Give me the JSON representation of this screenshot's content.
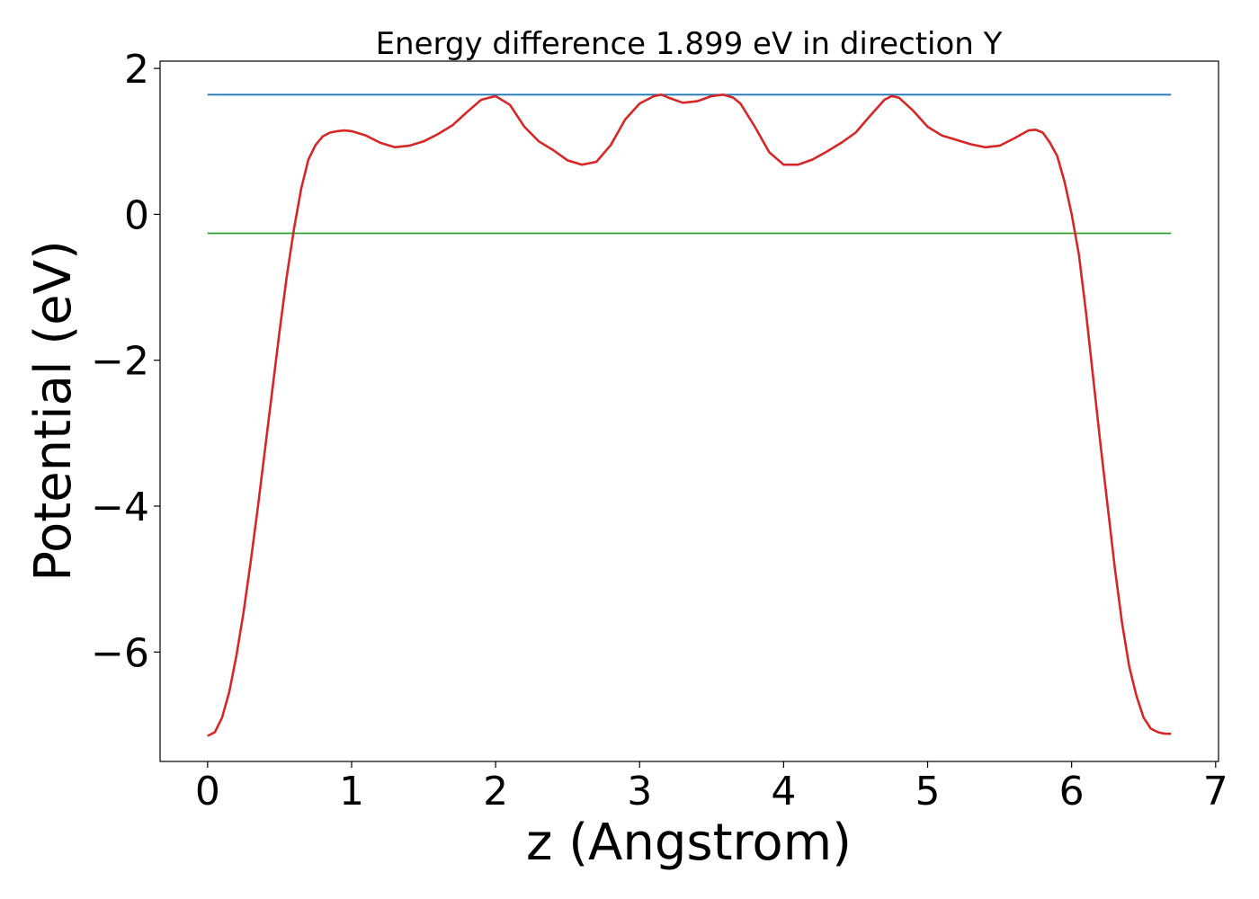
{
  "chart_data": {
    "type": "line",
    "title": "Energy difference 1.899 eV in direction Y",
    "xlabel": "z (Angstrom)",
    "ylabel": "Potential (eV)",
    "xlim": [
      -0.33,
      7.02
    ],
    "ylim": [
      -7.5,
      2.1
    ],
    "xticks": [
      0,
      1,
      2,
      3,
      4,
      5,
      6,
      7
    ],
    "xtick_labels": [
      "0",
      "1",
      "2",
      "3",
      "4",
      "5",
      "6",
      "7"
    ],
    "yticks": [
      2,
      0,
      -2,
      -4,
      -6
    ],
    "ytick_labels": [
      "2",
      "0",
      "−2",
      "−4",
      "−6"
    ],
    "grid": false,
    "series": [
      {
        "color": "#d62728",
        "x": [
          0.0,
          0.05,
          0.1,
          0.15,
          0.2,
          0.25,
          0.3,
          0.35,
          0.4,
          0.45,
          0.5,
          0.55,
          0.6,
          0.65,
          0.7,
          0.75,
          0.8,
          0.85,
          0.9,
          0.95,
          1.0,
          1.1,
          1.2,
          1.3,
          1.4,
          1.5,
          1.6,
          1.7,
          1.8,
          1.9,
          2.0,
          2.1,
          2.2,
          2.3,
          2.4,
          2.5,
          2.6,
          2.7,
          2.8,
          2.9,
          3.0,
          3.1,
          3.15,
          3.2,
          3.3,
          3.4,
          3.5,
          3.58,
          3.65,
          3.7,
          3.8,
          3.9,
          4.0,
          4.1,
          4.2,
          4.3,
          4.4,
          4.5,
          4.6,
          4.7,
          4.75,
          4.8,
          4.9,
          5.0,
          5.1,
          5.2,
          5.3,
          5.4,
          5.5,
          5.6,
          5.7,
          5.75,
          5.8,
          5.85,
          5.9,
          5.95,
          6.0,
          6.05,
          6.1,
          6.15,
          6.2,
          6.25,
          6.3,
          6.35,
          6.4,
          6.45,
          6.5,
          6.55,
          6.6,
          6.65,
          6.69
        ],
        "y": [
          -7.15,
          -7.1,
          -6.9,
          -6.55,
          -6.05,
          -5.45,
          -4.75,
          -4.0,
          -3.2,
          -2.4,
          -1.6,
          -0.85,
          -0.2,
          0.35,
          0.75,
          0.95,
          1.07,
          1.12,
          1.14,
          1.15,
          1.14,
          1.08,
          0.98,
          0.92,
          0.94,
          1.0,
          1.1,
          1.22,
          1.4,
          1.57,
          1.62,
          1.5,
          1.2,
          1.0,
          0.88,
          0.74,
          0.68,
          0.72,
          0.95,
          1.3,
          1.52,
          1.62,
          1.64,
          1.6,
          1.53,
          1.55,
          1.62,
          1.64,
          1.6,
          1.52,
          1.2,
          0.85,
          0.68,
          0.68,
          0.75,
          0.86,
          0.98,
          1.12,
          1.35,
          1.57,
          1.62,
          1.6,
          1.42,
          1.2,
          1.08,
          1.02,
          0.96,
          0.92,
          0.94,
          1.04,
          1.15,
          1.16,
          1.12,
          0.98,
          0.8,
          0.45,
          0.0,
          -0.55,
          -1.35,
          -2.25,
          -3.15,
          -4.0,
          -4.85,
          -5.6,
          -6.2,
          -6.6,
          -6.9,
          -7.05,
          -7.1,
          -7.12,
          -7.12
        ]
      },
      {
        "color": "#1f77b4",
        "x": [
          0.0,
          6.69
        ],
        "y": [
          1.64,
          1.64
        ]
      },
      {
        "color": "#2ca02c",
        "x": [
          0.0,
          6.69
        ],
        "y": [
          -0.26,
          -0.26
        ]
      }
    ]
  }
}
